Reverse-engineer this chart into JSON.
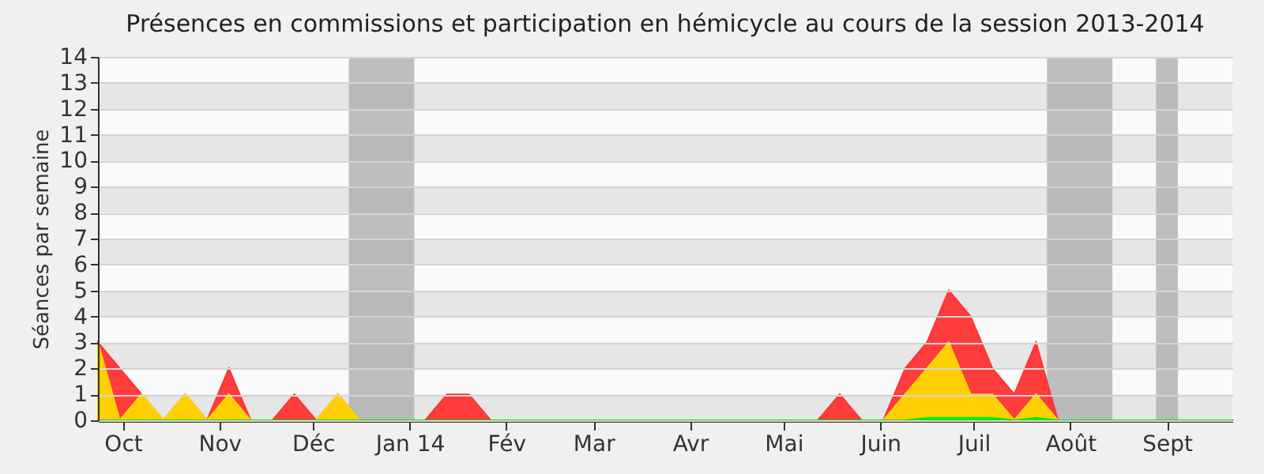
{
  "chart_data": {
    "type": "area",
    "title": "Présences en commissions et participation en hémicycle au cours de la session 2013-2014",
    "ylabel": "Séances par semaine",
    "x": [
      "2013-09-23",
      "2013-09-30",
      "2013-10-07",
      "2013-10-14",
      "2013-10-21",
      "2013-10-28",
      "2013-11-04",
      "2013-11-11",
      "2013-11-18",
      "2013-11-25",
      "2013-12-02",
      "2013-12-09",
      "2013-12-16",
      "2013-12-23",
      "2013-12-30",
      "2014-01-06",
      "2014-01-13",
      "2014-01-20",
      "2014-01-27",
      "2014-02-03",
      "2014-02-10",
      "2014-02-17",
      "2014-02-24",
      "2014-03-03",
      "2014-03-10",
      "2014-03-17",
      "2014-03-24",
      "2014-03-31",
      "2014-04-07",
      "2014-04-14",
      "2014-04-21",
      "2014-04-28",
      "2014-05-05",
      "2014-05-12",
      "2014-05-19",
      "2014-05-26",
      "2014-06-02",
      "2014-06-09",
      "2014-06-16",
      "2014-06-23",
      "2014-06-30",
      "2014-07-07",
      "2014-07-14",
      "2014-07-21",
      "2014-07-28",
      "2014-08-04",
      "2014-08-11",
      "2014-08-18",
      "2014-08-25",
      "2014-09-01",
      "2014-09-08",
      "2014-09-15",
      "2014-09-22"
    ],
    "xlim": [
      "2013-09-23",
      "2014-09-22"
    ],
    "xticks": [
      {
        "value": "2013-10-01",
        "label": "Oct"
      },
      {
        "value": "2013-11-01",
        "label": "Nov"
      },
      {
        "value": "2013-12-01",
        "label": "Déc"
      },
      {
        "value": "2014-01-01",
        "label": "Jan 14"
      },
      {
        "value": "2014-02-01",
        "label": "Fév"
      },
      {
        "value": "2014-03-01",
        "label": "Mar"
      },
      {
        "value": "2014-04-01",
        "label": "Avr"
      },
      {
        "value": "2014-05-01",
        "label": "Mai"
      },
      {
        "value": "2014-06-01",
        "label": "Juin"
      },
      {
        "value": "2014-07-01",
        "label": "Juil"
      },
      {
        "value": "2014-08-01",
        "label": "Août"
      },
      {
        "value": "2014-09-01",
        "label": "Sept"
      }
    ],
    "ylim": [
      0,
      14
    ],
    "yticks": [
      0,
      1,
      2,
      3,
      4,
      5,
      6,
      7,
      8,
      9,
      10,
      11,
      12,
      13,
      14
    ],
    "grid": true,
    "bands": [
      {
        "axis": "x",
        "from": "2013-12-12T12:00",
        "to": "2014-01-02T12:00",
        "color": "#aaaaaa"
      },
      {
        "axis": "x",
        "from": "2014-07-24T12:00",
        "to": "2014-08-14T12:00",
        "color": "#aaaaaa"
      },
      {
        "axis": "x",
        "from": "2014-08-28T12:00",
        "to": "2014-09-04T12:00",
        "color": "#aaaaaa"
      }
    ],
    "series": [
      {
        "color": "#ff3333",
        "values": [
          3,
          2,
          1,
          0,
          1,
          0,
          2,
          0,
          0,
          1,
          0,
          1,
          0,
          0,
          0,
          0,
          1,
          1,
          0,
          0,
          0,
          0,
          0,
          0,
          0,
          0,
          0,
          0,
          0,
          0,
          0,
          0,
          0,
          0,
          1,
          0,
          0,
          2,
          3,
          5,
          4,
          2,
          1,
          3,
          0,
          0,
          0,
          0,
          0,
          0,
          0,
          0,
          0
        ]
      },
      {
        "color": "#ffd700",
        "values": [
          3,
          0,
          1,
          0,
          1,
          0,
          1,
          0,
          0,
          0,
          0,
          1,
          0,
          0,
          0,
          0,
          0,
          0,
          0,
          0,
          0,
          0,
          0,
          0,
          0,
          0,
          0,
          0,
          0,
          0,
          0,
          0,
          0,
          0,
          0,
          0,
          0,
          1,
          2,
          3,
          1,
          1,
          0,
          1,
          0,
          0,
          0,
          0,
          0,
          0,
          0,
          0,
          0
        ]
      },
      {
        "color": "#00ee00",
        "values": [
          0,
          0,
          0,
          0,
          0,
          0,
          0,
          0,
          0,
          0,
          0,
          0,
          0,
          0,
          0,
          0,
          0,
          0,
          0,
          0,
          0,
          0,
          0,
          0,
          0,
          0,
          0,
          0,
          0,
          0,
          0,
          0,
          0,
          0,
          0,
          0,
          0,
          0,
          0.1,
          0.1,
          0.1,
          0.1,
          0,
          0.1,
          0,
          0,
          0,
          0,
          0,
          0,
          0,
          0,
          0
        ]
      }
    ]
  }
}
